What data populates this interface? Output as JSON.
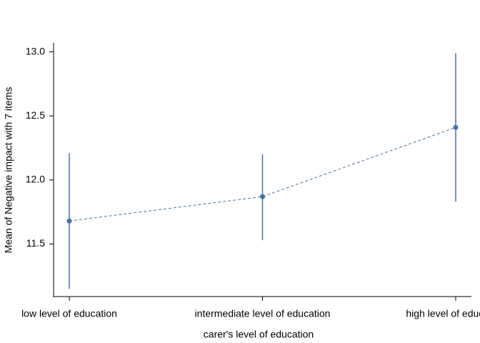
{
  "chart_data": {
    "type": "line",
    "x_label": "carer's level of education",
    "y_label": "Mean of Negative impact with 7 items",
    "categories": [
      "low level of education",
      "intermediate level of education",
      "high level of education"
    ],
    "series": [
      {
        "values": [
          11.68,
          11.87,
          12.41
        ],
        "lower": [
          11.15,
          11.53,
          11.83
        ],
        "upper": [
          12.21,
          12.2,
          12.99
        ],
        "color": "#4a6fa5"
      }
    ],
    "ylim": [
      11.09,
      13.07
    ],
    "yticks": [
      {
        "value": 11.5,
        "label": "11.5"
      },
      {
        "value": 12,
        "label": "12.0"
      },
      {
        "value": 12.5,
        "label": "12.5"
      },
      {
        "value": 13,
        "label": "13.0"
      }
    ]
  }
}
